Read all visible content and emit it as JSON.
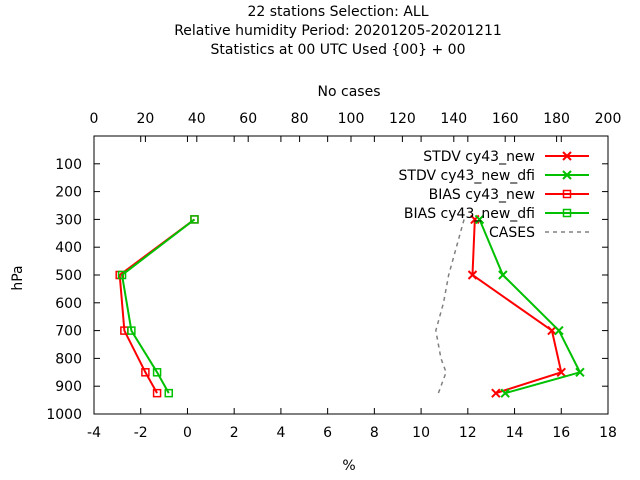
{
  "title": {
    "line1": "22 stations Selection: ALL",
    "line2": "Relative humidity  Period: 20201205-20201211",
    "line3": "Statistics at 00 UTC  Used {00} + 00"
  },
  "chart_data": {
    "type": "line",
    "xlabel": "%",
    "ylabel": "hPa",
    "x2label": "No cases",
    "xlim": [
      -4,
      18
    ],
    "x2lim": [
      0,
      200
    ],
    "ylim": [
      1000,
      0
    ],
    "y_inverted": true,
    "xticks": [
      "-4",
      "-2",
      "0",
      "2",
      "4",
      "6",
      "8",
      "10",
      "12",
      "14",
      "16",
      "18"
    ],
    "x2ticks": [
      "0",
      "20",
      "40",
      "60",
      "80",
      "100",
      "120",
      "140",
      "160",
      "180",
      "200"
    ],
    "yticks": [
      "100",
      "200",
      "300",
      "400",
      "500",
      "600",
      "700",
      "800",
      "900",
      "1000"
    ],
    "legend_position": "top-right",
    "series": [
      {
        "name": "STDV cy43_new",
        "color": "#ff0000",
        "marker": "x",
        "axis": "bottom",
        "points": [
          [
            12.3,
            300
          ],
          [
            12.2,
            500
          ],
          [
            15.6,
            700
          ],
          [
            16.0,
            850
          ],
          [
            13.2,
            925
          ]
        ]
      },
      {
        "name": "STDV cy43_new_dfi",
        "color": "#00c000",
        "marker": "x",
        "axis": "bottom",
        "points": [
          [
            12.5,
            300
          ],
          [
            13.5,
            500
          ],
          [
            15.9,
            700
          ],
          [
            16.8,
            850
          ],
          [
            13.6,
            925
          ]
        ]
      },
      {
        "name": "BIAS cy43_new",
        "color": "#ff0000",
        "marker": "square",
        "axis": "bottom",
        "points": [
          [
            0.3,
            300
          ],
          [
            -2.9,
            500
          ],
          [
            -2.7,
            700
          ],
          [
            -1.8,
            850
          ],
          [
            -1.3,
            925
          ]
        ]
      },
      {
        "name": "BIAS cy43_new_dfi",
        "color": "#00c000",
        "marker": "square",
        "axis": "bottom",
        "points": [
          [
            0.3,
            300
          ],
          [
            -2.8,
            500
          ],
          [
            -2.4,
            700
          ],
          [
            -1.3,
            850
          ],
          [
            -0.8,
            925
          ]
        ]
      },
      {
        "name": "CASES",
        "color": "#808080",
        "marker": "none",
        "dashed": true,
        "axis": "top",
        "points": [
          [
            144,
            300
          ],
          [
            141,
            400
          ],
          [
            138,
            500
          ],
          [
            136,
            600
          ],
          [
            133,
            700
          ],
          [
            135,
            800
          ],
          [
            137,
            850
          ],
          [
            134,
            925
          ]
        ]
      }
    ]
  }
}
